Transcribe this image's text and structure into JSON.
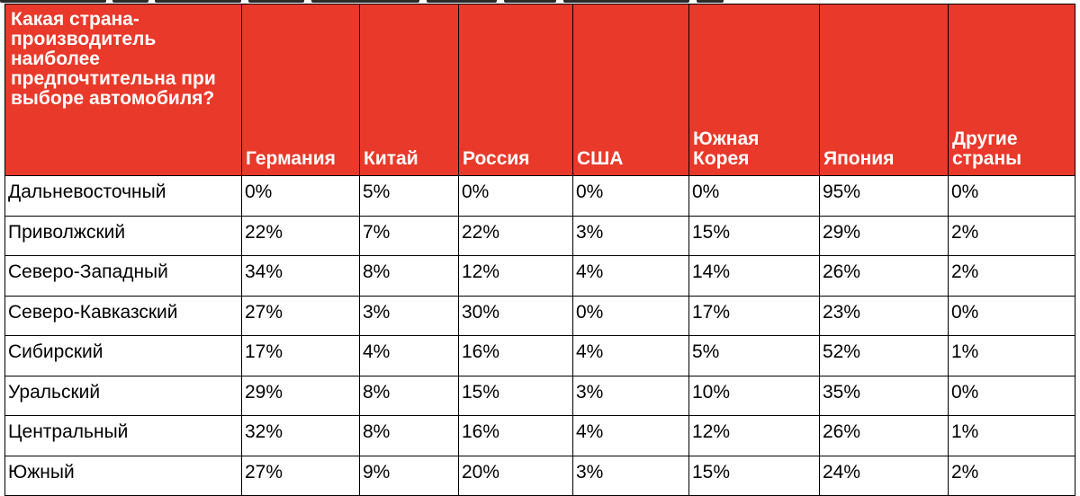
{
  "chart_data": {
    "type": "table",
    "corner_header": "Какая страна-производитель наиболее предпочтительна при выборе автомобиля?",
    "columns": [
      "Германия",
      "Китай",
      "Россия",
      "США",
      "Южная Корея",
      "Япония",
      "Другие страны"
    ],
    "rows": [
      {
        "region": "Дальневосточный",
        "values": [
          "0%",
          "5%",
          "0%",
          "0%",
          "0%",
          "95%",
          "0%"
        ]
      },
      {
        "region": "Приволжский",
        "values": [
          "22%",
          "7%",
          "22%",
          "3%",
          "15%",
          "29%",
          "2%"
        ]
      },
      {
        "region": "Северо-Западный",
        "values": [
          "34%",
          "8%",
          "12%",
          "4%",
          "14%",
          "26%",
          "2%"
        ]
      },
      {
        "region": "Северо-Кавказский",
        "values": [
          "27%",
          "3%",
          "30%",
          "0%",
          "17%",
          "23%",
          "0%"
        ]
      },
      {
        "region": "Сибирский",
        "values": [
          "17%",
          "4%",
          "16%",
          "4%",
          "5%",
          "52%",
          "1%"
        ]
      },
      {
        "region": "Уральский",
        "values": [
          "29%",
          "8%",
          "15%",
          "3%",
          "10%",
          "35%",
          "0%"
        ]
      },
      {
        "region": "Центральный",
        "values": [
          "32%",
          "8%",
          "16%",
          "4%",
          "12%",
          "26%",
          "1%"
        ]
      },
      {
        "region": "Южный",
        "values": [
          "27%",
          "9%",
          "20%",
          "3%",
          "15%",
          "24%",
          "2%"
        ]
      }
    ]
  },
  "colors": {
    "header_background": "#e8392a",
    "header_text": "#ffffff",
    "border": "#000000"
  }
}
